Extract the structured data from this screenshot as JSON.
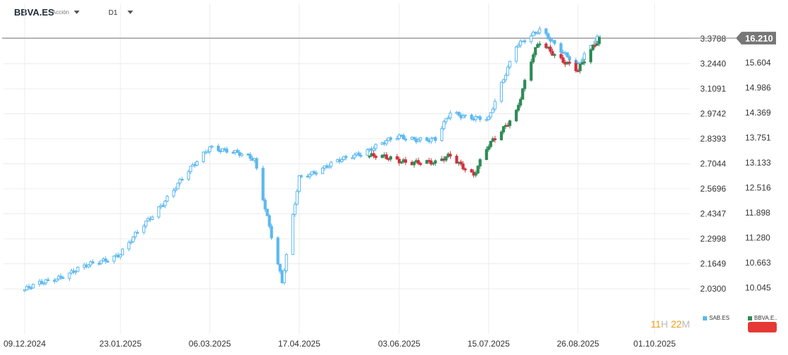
{
  "header": {
    "symbol": "BBVA.ES",
    "symbol_type": "Acción",
    "timeframe": "D1"
  },
  "colors": {
    "sab_line": "#5bb8f0",
    "bbva_up": "#2e8b57",
    "bbva_down": "#d32f3c",
    "grid": "#ececec",
    "current_price_line": "#777777",
    "price_tag": "#777777",
    "timer_accent": "#f39c12"
  },
  "timer": {
    "hours": "11",
    "hours_unit": "H",
    "minutes": "22",
    "minutes_unit": "M"
  },
  "legend": [
    {
      "name": "SAB.ES",
      "color": "#5bb8f0"
    },
    {
      "name": "BBVA.E..",
      "color": "#2e8b57"
    }
  ],
  "chart_data": {
    "type": "candlestick",
    "x_axis_labels": [
      "09.12.2024",
      "23.01.2025",
      "06.03.2025",
      "17.04.2025",
      "03.06.2025",
      "15.07.2025",
      "26.08.2025",
      "01.10.2025"
    ],
    "left_price_axis": {
      "series": "SAB.ES",
      "ticks": [
        "3.3788",
        "3.2440",
        "3.1091",
        "2.9742",
        "2.8393",
        "2.7044",
        "2.5696",
        "2.4347",
        "2.2998",
        "2.1649",
        "2.0300"
      ]
    },
    "right_price_axis": {
      "series": "BBVA.ES",
      "ticks": [
        "15.604",
        "14.986",
        "14.369",
        "13.751",
        "13.133",
        "12.516",
        "11.898",
        "11.280",
        "10.663",
        "10.045"
      ],
      "current_price": "16.210"
    },
    "series": [
      {
        "name": "SAB.ES",
        "style": "hollow-candles",
        "approx_close_path": [
          [
            "09.12.2024",
            2.025
          ],
          [
            "23.01.2025",
            2.22
          ],
          [
            "06.03.2025",
            2.8
          ],
          [
            "27.03.2025",
            2.73
          ],
          [
            "09.04.2025",
            2.06
          ],
          [
            "17.04.2025",
            2.63
          ],
          [
            "03.06.2025",
            2.85
          ],
          [
            "20.06.2025",
            2.83
          ],
          [
            "27.06.2025",
            2.98
          ],
          [
            "15.07.2025",
            2.94
          ],
          [
            "28.07.2025",
            3.35
          ],
          [
            "08.08.2025",
            3.42
          ],
          [
            "26.08.2025",
            3.24
          ],
          [
            "05.09.2025",
            3.39
          ]
        ]
      },
      {
        "name": "BBVA.ES",
        "style": "filled-candles",
        "approx_close_path": [
          [
            "20.05.2025",
            13.3
          ],
          [
            "03.06.2025",
            13.2
          ],
          [
            "20.06.2025",
            13.1
          ],
          [
            "27.06.2025",
            13.35
          ],
          [
            "08.07.2025",
            12.8
          ],
          [
            "15.07.2025",
            13.55
          ],
          [
            "28.07.2025",
            14.4
          ],
          [
            "05.08.2025",
            15.8
          ],
          [
            "08.08.2025",
            16.1
          ],
          [
            "26.08.2025",
            15.4
          ],
          [
            "05.09.2025",
            16.21
          ]
        ]
      }
    ]
  }
}
